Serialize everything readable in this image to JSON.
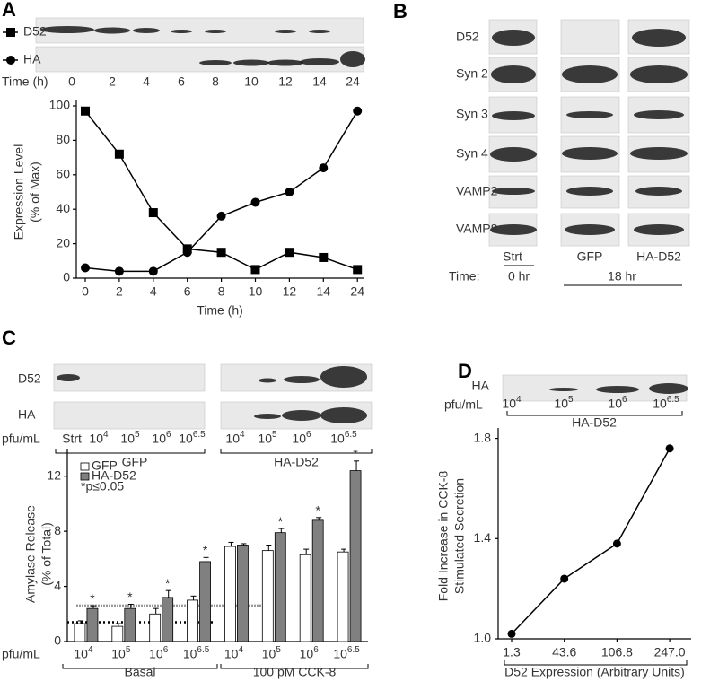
{
  "panel_labels": [
    "A",
    "B",
    "C",
    "D"
  ],
  "chart_data": [
    {
      "type": "line",
      "ylabel": [
        "Expression Level",
        "(% of Max)"
      ],
      "xlabel": "Time (h)",
      "categories": [
        "0",
        "2",
        "4",
        "6",
        "8",
        "10",
        "12",
        "14",
        "24"
      ],
      "ylim": [
        0,
        100
      ],
      "yticks": [
        0,
        20,
        40,
        60,
        80,
        100
      ],
      "series": [
        {
          "name": "D52",
          "marker": "square",
          "color": "#000000",
          "values": [
            97,
            72,
            38,
            17,
            15,
            5,
            15,
            12,
            5
          ]
        },
        {
          "name": "HA",
          "marker": "circle",
          "color": "#000000",
          "values": [
            6,
            4,
            4,
            15,
            36,
            44,
            50,
            64,
            97
          ]
        }
      ]
    },
    {
      "type": "bar",
      "ylabel": [
        "Amylase Release",
        "(% of Total)"
      ],
      "x_prefix": "pfu/mL",
      "categories": [
        "10^4",
        "10^5",
        "10^6",
        "10^6.5",
        "10^4",
        "10^5",
        "10^6",
        "10^6.5"
      ],
      "groups": [
        "Basal",
        "100 pM CCK-8"
      ],
      "note": "*p≤0.05",
      "ylim": [
        0,
        14
      ],
      "yticks": [
        0,
        4,
        8,
        12
      ],
      "series": [
        {
          "name": "GFP",
          "color": "#ffffff",
          "values": [
            1.3,
            1.1,
            2.0,
            3.0,
            6.9,
            6.6,
            6.3,
            6.5
          ],
          "errors": [
            0.2,
            0.2,
            0.4,
            0.3,
            0.3,
            0.4,
            0.4,
            0.2
          ]
        },
        {
          "name": "HA-D52",
          "color": "#808080",
          "values": [
            2.4,
            2.4,
            3.2,
            5.8,
            7.0,
            7.9,
            8.8,
            12.4
          ],
          "errors": [
            0.2,
            0.3,
            0.5,
            0.3,
            0.1,
            0.3,
            0.2,
            0.7
          ],
          "significance": [
            "*",
            "*",
            "*",
            "*",
            null,
            "*",
            "*",
            "*"
          ]
        }
      ],
      "reference_lines": [
        {
          "value": 1.4,
          "color": "#000000"
        },
        {
          "value": 2.6,
          "color": "#999999"
        }
      ]
    },
    {
      "type": "line",
      "ylabel": [
        "Fold Increase in CCK-8",
        "Stimulated Secretion"
      ],
      "xlabel": "D52 Expression (Arbitrary Units)",
      "categories": [
        "1.3",
        "43.6",
        "106.8",
        "247.0"
      ],
      "ylim": [
        1.0,
        1.82
      ],
      "yticks": [
        {
          "value": 1.0,
          "label": "1.0"
        },
        1.4,
        1.8
      ],
      "series": [
        {
          "marker": "circle",
          "color": "#000000",
          "values": [
            1.02,
            1.24,
            1.38,
            1.76
          ]
        }
      ]
    }
  ],
  "blots": {
    "B": {
      "rows": [
        "D52",
        "Syn 2",
        "Syn 3",
        "Syn 4",
        "VAMP2",
        "VAMP8"
      ],
      "columns": [
        "Strt",
        "GFP",
        "HA-D52"
      ],
      "time_label": "Time:",
      "times": [
        "0 hr",
        "18 hr"
      ]
    },
    "C": {
      "rows": [
        "D52",
        "HA"
      ],
      "unit": "pfu/mL",
      "lanes": [
        "Strt",
        "10^4",
        "10^5",
        "10^6",
        "10^6.5",
        "10^4",
        "10^5",
        "10^6",
        "10^6.5"
      ],
      "groups": [
        "GFP",
        "HA-D52"
      ]
    },
    "D": {
      "rows": [
        "HA"
      ],
      "unit": "pfu/mL",
      "lanes": [
        "10^4",
        "10^5",
        "10^6",
        "10^6.5"
      ],
      "group": "HA-D52"
    }
  }
}
